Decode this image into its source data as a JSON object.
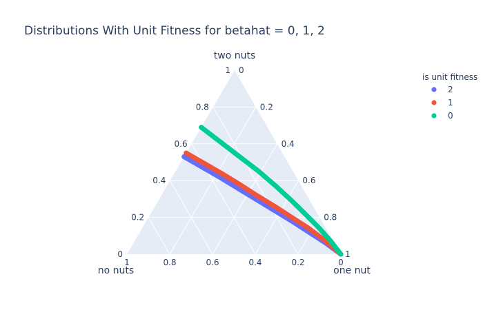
{
  "chart_data": {
    "type": "scatter",
    "subtype": "ternary",
    "title": "Distributions With Unit Fitness for betahat = 0, 1, 2",
    "axes": {
      "a": {
        "title": "two nuts"
      },
      "b": {
        "title": "no nuts"
      },
      "c": {
        "title": "one nut"
      }
    },
    "ticks": [
      "0",
      "0.2",
      "0.4",
      "0.6",
      "0.8",
      "1"
    ],
    "legend": {
      "title": "is unit fitness",
      "placement": "top-right"
    },
    "series": [
      {
        "name": "2",
        "color": "#636efa",
        "a": [
          0.53,
          0.48,
          0.42,
          0.36,
          0.3,
          0.24,
          0.18,
          0.12,
          0.06,
          0.0
        ],
        "b": [
          0.47,
          0.42,
          0.36,
          0.305,
          0.25,
          0.195,
          0.14,
          0.09,
          0.04,
          0.0
        ],
        "c": [
          0.0,
          0.1,
          0.22,
          0.335,
          0.45,
          0.565,
          0.68,
          0.79,
          0.9,
          1.0
        ]
      },
      {
        "name": "1",
        "color": "#ef553b",
        "a": [
          0.55,
          0.5,
          0.44,
          0.38,
          0.32,
          0.26,
          0.2,
          0.14,
          0.07,
          0.0
        ],
        "b": [
          0.45,
          0.4,
          0.34,
          0.285,
          0.235,
          0.18,
          0.13,
          0.08,
          0.035,
          0.0
        ],
        "c": [
          0.0,
          0.1,
          0.22,
          0.335,
          0.445,
          0.56,
          0.67,
          0.78,
          0.895,
          1.0
        ]
      },
      {
        "name": "0",
        "color": "#00cc96",
        "a": [
          0.69,
          0.61,
          0.53,
          0.45,
          0.37,
          0.29,
          0.21,
          0.14,
          0.07,
          0.0
        ],
        "b": [
          0.31,
          0.26,
          0.21,
          0.16,
          0.12,
          0.085,
          0.055,
          0.03,
          0.012,
          0.0
        ],
        "c": [
          0.0,
          0.13,
          0.26,
          0.39,
          0.51,
          0.625,
          0.735,
          0.83,
          0.918,
          1.0
        ]
      }
    ]
  }
}
